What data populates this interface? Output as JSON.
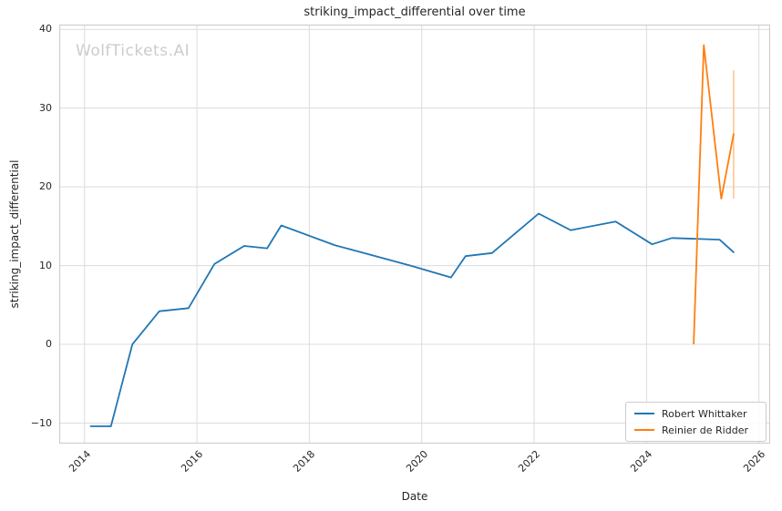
{
  "watermark": "WolfTickets.AI",
  "chart_data": {
    "type": "line",
    "title": "striking_impact_differential over time",
    "xlabel": "Date",
    "ylabel": "striking_impact_differential",
    "x_unit": "decimal_year",
    "xlim": [
      2013.55,
      2026.2
    ],
    "ylim": [
      -12.6,
      40.6
    ],
    "xticks": [
      2014,
      2016,
      2018,
      2020,
      2022,
      2024,
      2026
    ],
    "yticks": [
      -10,
      0,
      10,
      20,
      30,
      40
    ],
    "grid": true,
    "grid_color": "#dcdcdc",
    "spine_color": "#cccccc",
    "legend_position": "lower right",
    "series": [
      {
        "name": "Robert Whittaker",
        "color": "#1f77b4",
        "x": [
          2014.11,
          2014.47,
          2014.85,
          2015.33,
          2015.85,
          2016.31,
          2016.84,
          2017.25,
          2017.5,
          2018.45,
          2019.8,
          2020.52,
          2020.78,
          2021.25,
          2022.08,
          2022.65,
          2023.45,
          2024.1,
          2024.45,
          2025.3,
          2025.55
        ],
        "y": [
          -10.4,
          -10.4,
          0.0,
          4.2,
          4.6,
          10.2,
          12.5,
          12.2,
          15.1,
          12.6,
          10.0,
          8.5,
          11.2,
          11.6,
          16.6,
          14.5,
          15.6,
          12.7,
          13.5,
          13.3,
          11.7
        ]
      },
      {
        "name": "Reinier de Ridder",
        "color": "#ff7f0e",
        "x": [
          2024.84,
          2025.02,
          2025.33,
          2025.55
        ],
        "y": [
          0.1,
          38.0,
          18.5,
          26.7
        ],
        "error_bar": {
          "x": 2025.55,
          "y_low": 18.5,
          "y_high": 34.8,
          "color": "#ffc690"
        }
      }
    ]
  },
  "legend": {
    "items": [
      {
        "label": "Robert Whittaker",
        "color": "#1f77b4"
      },
      {
        "label": "Reinier de Ridder",
        "color": "#ff7f0e"
      }
    ]
  }
}
